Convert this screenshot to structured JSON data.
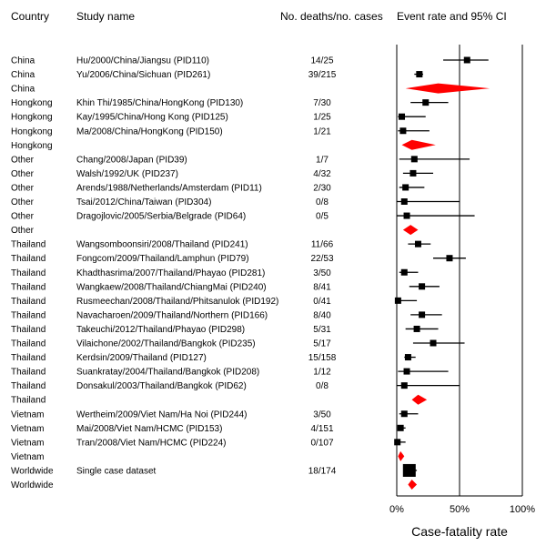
{
  "headers": {
    "country": "Country",
    "study": "Study name",
    "deaths": "No. deaths/no. cases",
    "ci": "Event rate and 95% CI"
  },
  "chart_data": {
    "type": "forest",
    "xlabel": "Case-fatality rate",
    "xlim": [
      0,
      1
    ],
    "xticks": [
      0,
      0.5,
      1
    ],
    "xtick_labels": [
      "0%",
      "50%",
      "100%"
    ],
    "marker_color_study": "#000000",
    "marker_color_summary": "#ff0000",
    "rows": [
      {
        "country": "China",
        "study": "Hu/2000/China/Jiangsu (PID110)",
        "deaths": "14/25",
        "est": 0.56,
        "lo": 0.37,
        "hi": 0.73,
        "kind": "study"
      },
      {
        "country": "China",
        "study": "Yu/2006/China/Sichuan (PID261)",
        "deaths": "39/215",
        "est": 0.18,
        "lo": 0.14,
        "hi": 0.21,
        "kind": "study"
      },
      {
        "country": "China",
        "study": "",
        "deaths": "",
        "est": 0.33,
        "lo": 0.07,
        "hi": 0.74,
        "kind": "summary"
      },
      {
        "country": "Hongkong",
        "study": "Khin Thi/1985/China/HongKong (PID130)",
        "deaths": "7/30",
        "est": 0.23,
        "lo": 0.11,
        "hi": 0.41,
        "kind": "study"
      },
      {
        "country": "Hongkong",
        "study": "Kay/1995/China/Hong Kong (PID125)",
        "deaths": "1/25",
        "est": 0.04,
        "lo": 0.01,
        "hi": 0.23,
        "kind": "study"
      },
      {
        "country": "Hongkong",
        "study": "Ma/2008/China/HongKong (PID150)",
        "deaths": "1/21",
        "est": 0.05,
        "lo": 0.01,
        "hi": 0.26,
        "kind": "study"
      },
      {
        "country": "Hongkong",
        "study": "",
        "deaths": "",
        "est": 0.12,
        "lo": 0.04,
        "hi": 0.31,
        "kind": "summary"
      },
      {
        "country": "Other",
        "study": "Chang/2008/Japan (PID39)",
        "deaths": "1/7",
        "est": 0.14,
        "lo": 0.02,
        "hi": 0.58,
        "kind": "study"
      },
      {
        "country": "Other",
        "study": "Walsh/1992/UK (PID237)",
        "deaths": "4/32",
        "est": 0.13,
        "lo": 0.05,
        "hi": 0.29,
        "kind": "study"
      },
      {
        "country": "Other",
        "study": "Arends/1988/Netherlands/Amsterdam (PID11)",
        "deaths": "2/30",
        "est": 0.07,
        "lo": 0.02,
        "hi": 0.22,
        "kind": "study"
      },
      {
        "country": "Other",
        "study": "Tsai/2012/China/Taiwan (PID304)",
        "deaths": "0/8",
        "est": 0.06,
        "lo": 0.0,
        "hi": 0.5,
        "kind": "study"
      },
      {
        "country": "Other",
        "study": "Dragojlovic/2005/Serbia/Belgrade (PID64)",
        "deaths": "0/5",
        "est": 0.08,
        "lo": 0.0,
        "hi": 0.62,
        "kind": "study"
      },
      {
        "country": "Other",
        "study": "",
        "deaths": "",
        "est": 0.11,
        "lo": 0.05,
        "hi": 0.17,
        "kind": "summary"
      },
      {
        "country": "Thailand",
        "study": "Wangsomboonsiri/2008/Thailand (PID241)",
        "deaths": "11/66",
        "est": 0.17,
        "lo": 0.09,
        "hi": 0.27,
        "kind": "study"
      },
      {
        "country": "Thailand",
        "study": "Fongcom/2009/Thailand/Lamphun (PID79)",
        "deaths": "22/53",
        "est": 0.42,
        "lo": 0.29,
        "hi": 0.55,
        "kind": "study"
      },
      {
        "country": "Thailand",
        "study": "Khadthasrima/2007/Thailand/Phayao (PID281)",
        "deaths": "3/50",
        "est": 0.06,
        "lo": 0.02,
        "hi": 0.17,
        "kind": "study"
      },
      {
        "country": "Thailand",
        "study": "Wangkaew/2008/Thailand/ChiangMai (PID240)",
        "deaths": "8/41",
        "est": 0.2,
        "lo": 0.1,
        "hi": 0.34,
        "kind": "study"
      },
      {
        "country": "Thailand",
        "study": "Rusmeechan/2008/Thailand/Phitsanulok (PID192)",
        "deaths": "0/41",
        "est": 0.01,
        "lo": 0.0,
        "hi": 0.16,
        "kind": "study"
      },
      {
        "country": "Thailand",
        "study": "Navacharoen/2009/Thailand/Northern (PID166)",
        "deaths": "8/40",
        "est": 0.2,
        "lo": 0.11,
        "hi": 0.36,
        "kind": "study"
      },
      {
        "country": "Thailand",
        "study": "Takeuchi/2012/Thailand/Phayao (PID298)",
        "deaths": "5/31",
        "est": 0.16,
        "lo": 0.07,
        "hi": 0.33,
        "kind": "study"
      },
      {
        "country": "Thailand",
        "study": "Vilaichone/2002/Thailand/Bangkok (PID235)",
        "deaths": "5/17",
        "est": 0.29,
        "lo": 0.13,
        "hi": 0.54,
        "kind": "study"
      },
      {
        "country": "Thailand",
        "study": "Kerdsin/2009/Thailand (PID127)",
        "deaths": "15/158",
        "est": 0.09,
        "lo": 0.06,
        "hi": 0.15,
        "kind": "study"
      },
      {
        "country": "Thailand",
        "study": "Suankratay/2004/Thailand/Bangkok (PID208)",
        "deaths": "1/12",
        "est": 0.08,
        "lo": 0.01,
        "hi": 0.41,
        "kind": "study"
      },
      {
        "country": "Thailand",
        "study": "Donsakul/2003/Thailand/Bangkok (PID62)",
        "deaths": "0/8",
        "est": 0.06,
        "lo": 0.0,
        "hi": 0.5,
        "kind": "study"
      },
      {
        "country": "Thailand",
        "study": "",
        "deaths": "",
        "est": 0.17,
        "lo": 0.12,
        "hi": 0.24,
        "kind": "summary"
      },
      {
        "country": "Vietnam",
        "study": "Wertheim/2009/Viet Nam/Ha Noi (PID244)",
        "deaths": "3/50",
        "est": 0.06,
        "lo": 0.02,
        "hi": 0.17,
        "kind": "study"
      },
      {
        "country": "Vietnam",
        "study": "Mai/2008/Viet Nam/HCMC (PID153)",
        "deaths": "4/151",
        "est": 0.03,
        "lo": 0.01,
        "hi": 0.07,
        "kind": "study"
      },
      {
        "country": "Vietnam",
        "study": "Tran/2008/Viet Nam/HCMC (PID224)",
        "deaths": "0/107",
        "est": 0.005,
        "lo": 0.0,
        "hi": 0.07,
        "kind": "study"
      },
      {
        "country": "Vietnam",
        "study": "",
        "deaths": "",
        "est": 0.03,
        "lo": 0.01,
        "hi": 0.06,
        "kind": "summary"
      },
      {
        "country": "Worldwide",
        "study": "Single case dataset",
        "deaths": "18/174",
        "est": 0.1,
        "lo": 0.07,
        "hi": 0.16,
        "kind": "study"
      },
      {
        "country": "Worldwide",
        "study": "",
        "deaths": "",
        "est": 0.12,
        "lo": 0.09,
        "hi": 0.16,
        "kind": "summary"
      }
    ]
  }
}
